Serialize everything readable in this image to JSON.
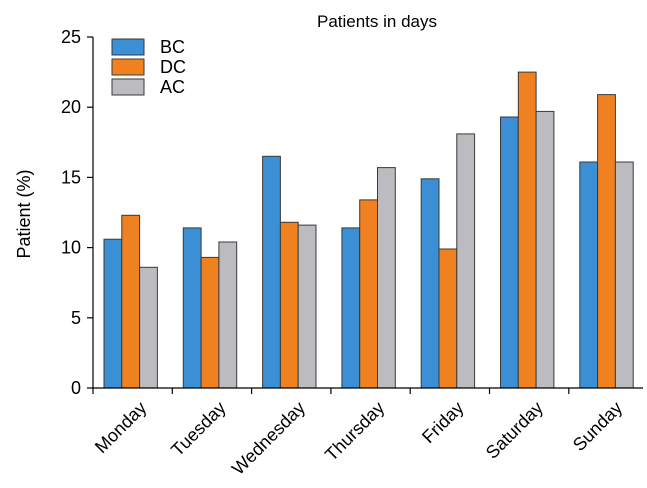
{
  "chart_data": {
    "type": "bar",
    "title": "Patients in days",
    "xlabel": "",
    "ylabel": "Patient (%)",
    "ylim": [
      0,
      25
    ],
    "yticks": [
      0,
      5,
      10,
      15,
      20,
      25
    ],
    "grid": false,
    "legend_position": "top-left",
    "categories": [
      "Monday",
      "Tuesday",
      "Wednesday",
      "Thursday",
      "Friday",
      "Saturday",
      "Sunday"
    ],
    "series": [
      {
        "name": "BC",
        "color": "#3b8fd4",
        "values": [
          10.6,
          11.4,
          16.5,
          11.4,
          14.9,
          19.3,
          16.1
        ]
      },
      {
        "name": "DC",
        "color": "#f08121",
        "values": [
          12.3,
          9.3,
          11.8,
          13.4,
          9.9,
          22.5,
          20.9
        ]
      },
      {
        "name": "AC",
        "color": "#bcbcc0",
        "values": [
          8.6,
          10.4,
          11.6,
          15.7,
          18.1,
          19.7,
          16.1
        ]
      }
    ]
  }
}
